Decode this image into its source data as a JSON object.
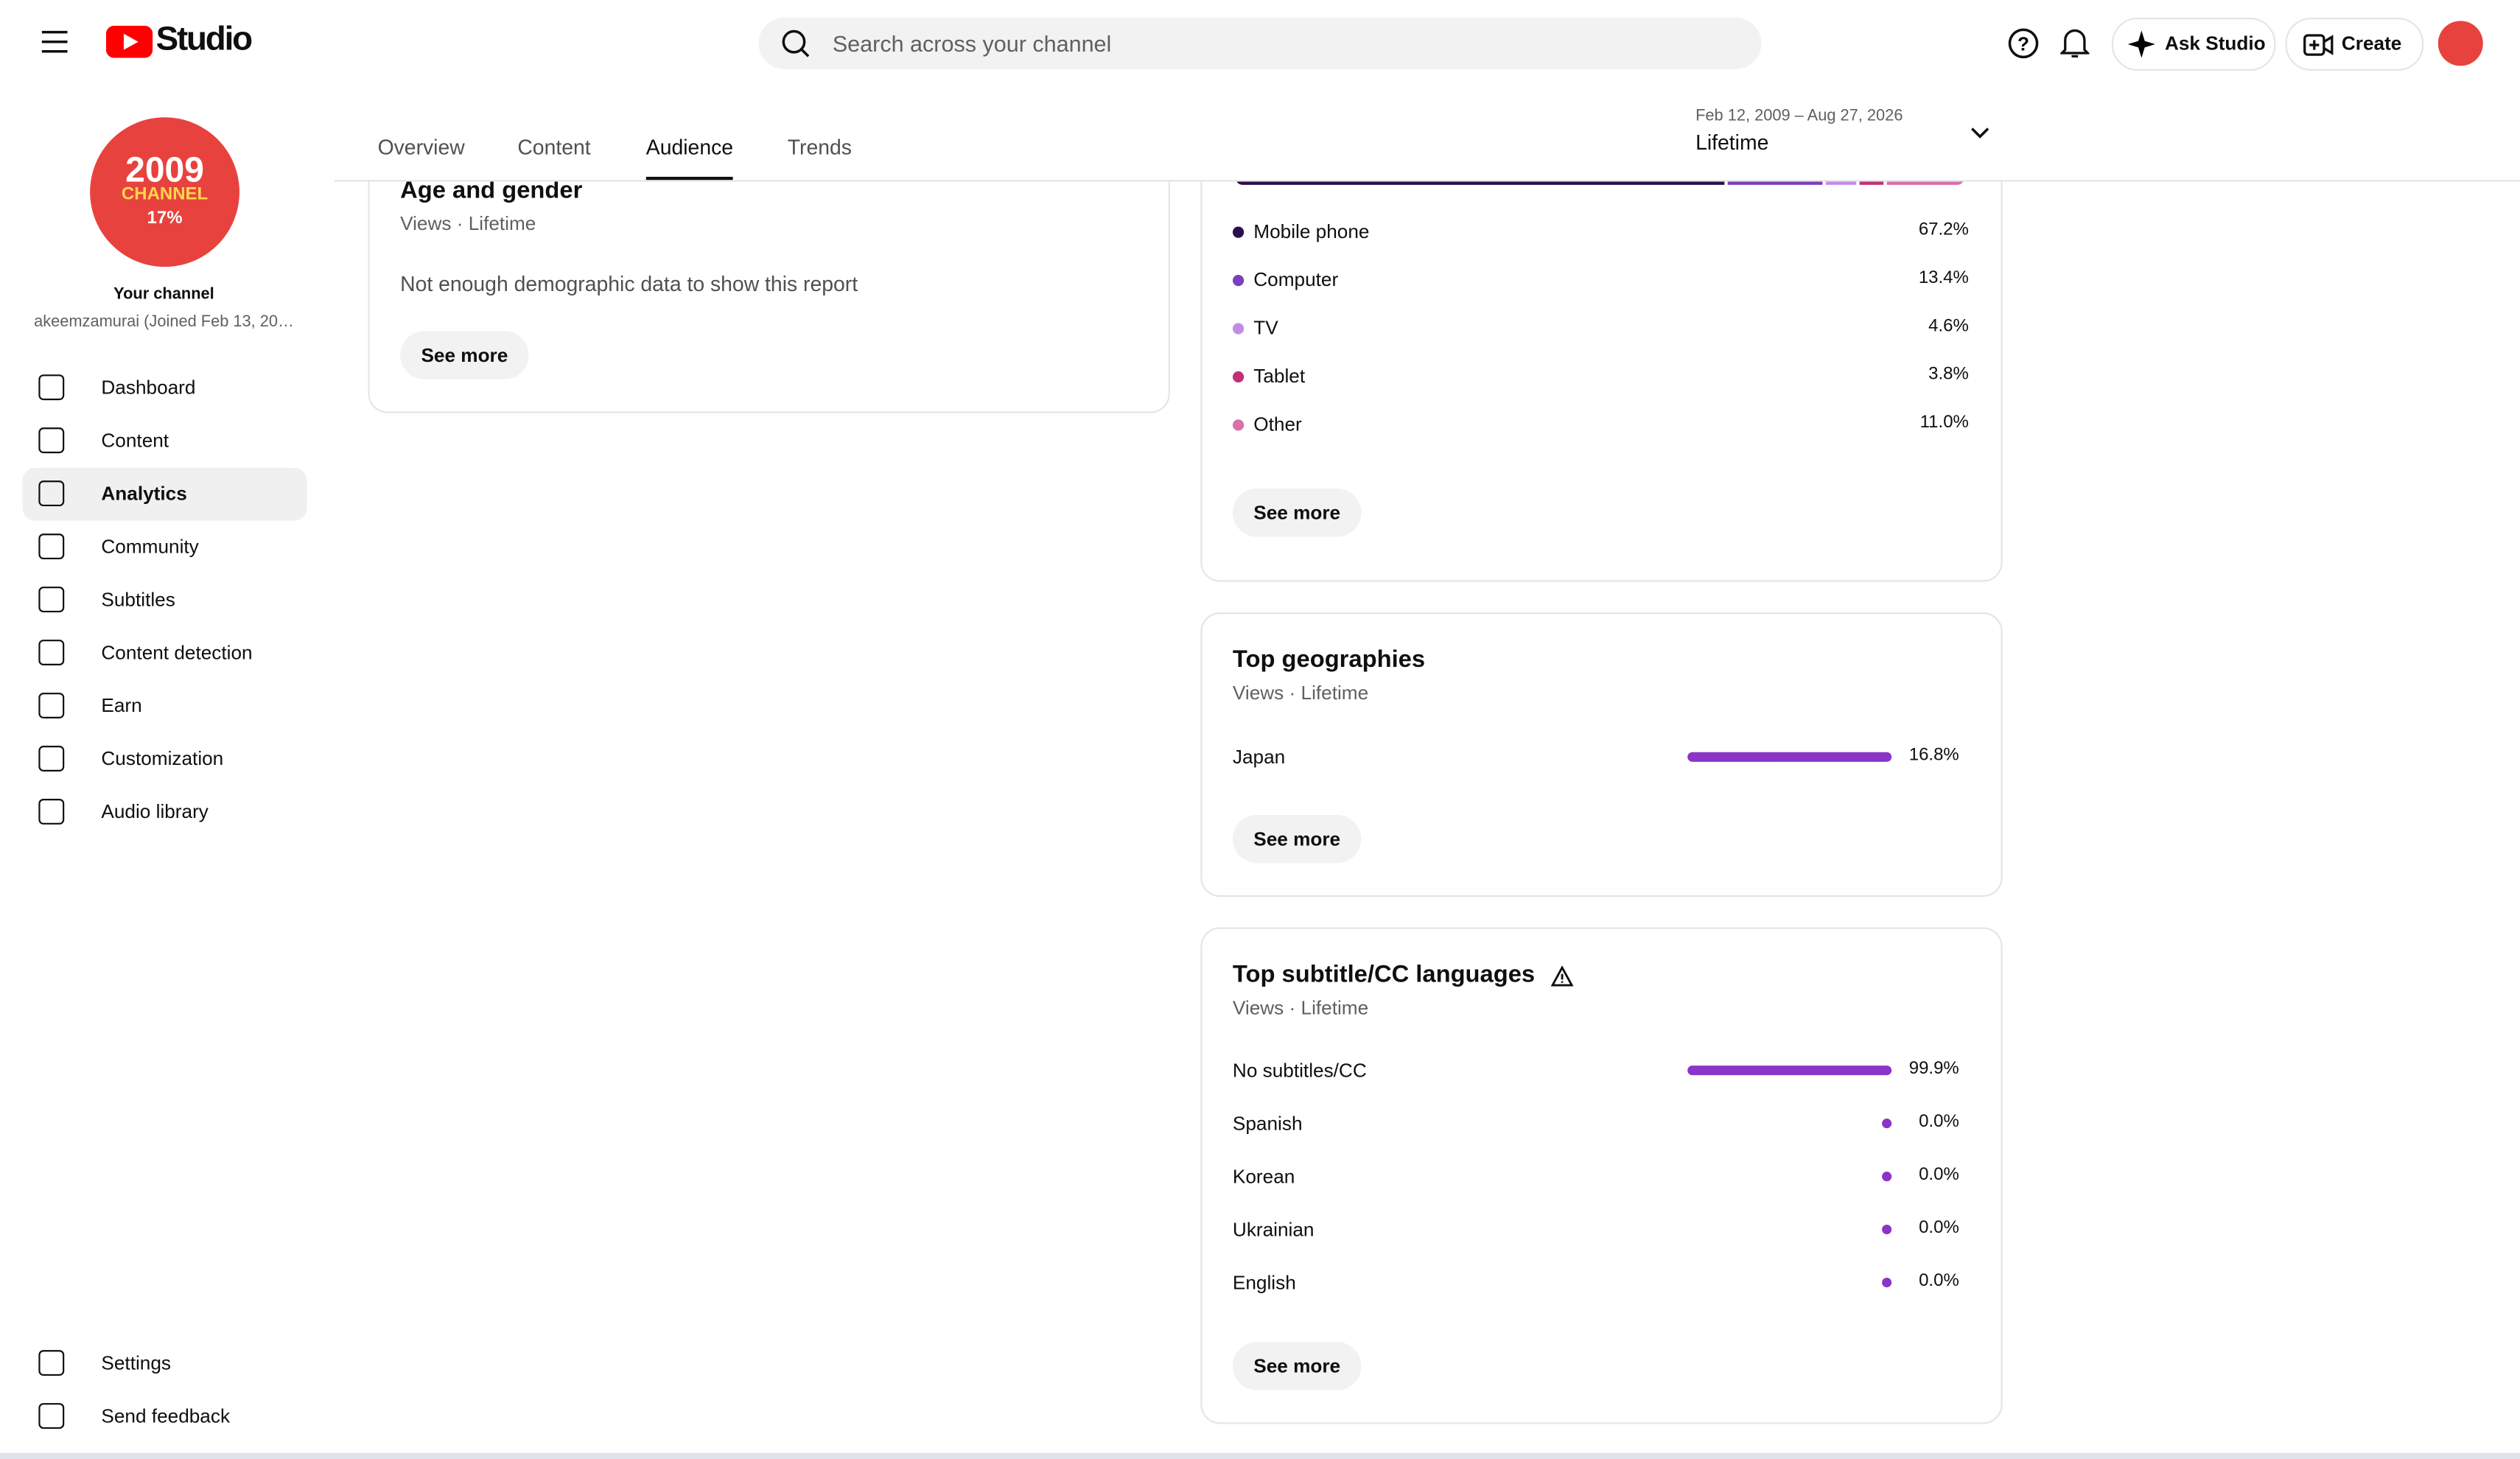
{
  "header": {
    "product": "Studio",
    "search_placeholder": "Search across your channel",
    "ask": "Ask Studio",
    "create": "Create"
  },
  "sidebar": {
    "avatar_line1": "2009",
    "avatar_line2": "CHANNEL",
    "avatar_line3": "17%",
    "channel_label": "Your channel",
    "channel_handle": "akeemzamurai (Joined Feb 13, 20…",
    "nav": [
      "Dashboard",
      "Content",
      "Analytics",
      "Community",
      "Subtitles",
      "Content detection",
      "Earn",
      "Customization",
      "Audio library"
    ],
    "active": 2,
    "bottom": [
      "Settings",
      "Send feedback"
    ]
  },
  "tabs": {
    "items": [
      "Overview",
      "Content",
      "Audience",
      "Trends"
    ],
    "active": 2
  },
  "date_range": {
    "range": "Feb 12, 2009 – Aug 27, 2026",
    "period": "Lifetime"
  },
  "age_gender": {
    "title": "Age and gender",
    "subtitle": "Views · Lifetime",
    "message": "Not enough demographic data to show this report",
    "button": "See more"
  },
  "devices": {
    "items": [
      {
        "name": "Mobile phone",
        "value": 67.2,
        "label": "67.2%",
        "color": "#2b0f4c"
      },
      {
        "name": "Computer",
        "value": 13.4,
        "label": "13.4%",
        "color": "#7b3fbf"
      },
      {
        "name": "TV",
        "value": 4.6,
        "label": "4.6%",
        "color": "#c48ae8"
      },
      {
        "name": "Tablet",
        "value": 3.8,
        "label": "3.8%",
        "color": "#c2307a"
      },
      {
        "name": "Other",
        "value": 11.0,
        "label": "11.0%",
        "color": "#d970a8"
      }
    ],
    "button": "See more"
  },
  "geographies": {
    "title": "Top geographies",
    "subtitle": "Views · Lifetime",
    "items": [
      {
        "name": "Japan",
        "value": 16.8,
        "label": "16.8%"
      }
    ],
    "button": "See more",
    "color": "#8b34c8"
  },
  "subtitles": {
    "title": "Top subtitle/CC languages",
    "subtitle": "Views · Lifetime",
    "items": [
      {
        "name": "No subtitles/CC",
        "value": 99.9,
        "label": "99.9%"
      },
      {
        "name": "Spanish",
        "value": 0.0,
        "label": "0.0%"
      },
      {
        "name": "Korean",
        "value": 0.0,
        "label": "0.0%"
      },
      {
        "name": "Ukrainian",
        "value": 0.0,
        "label": "0.0%"
      },
      {
        "name": "English",
        "value": 0.0,
        "label": "0.0%"
      }
    ],
    "button": "See more",
    "color": "#8b34c8"
  }
}
